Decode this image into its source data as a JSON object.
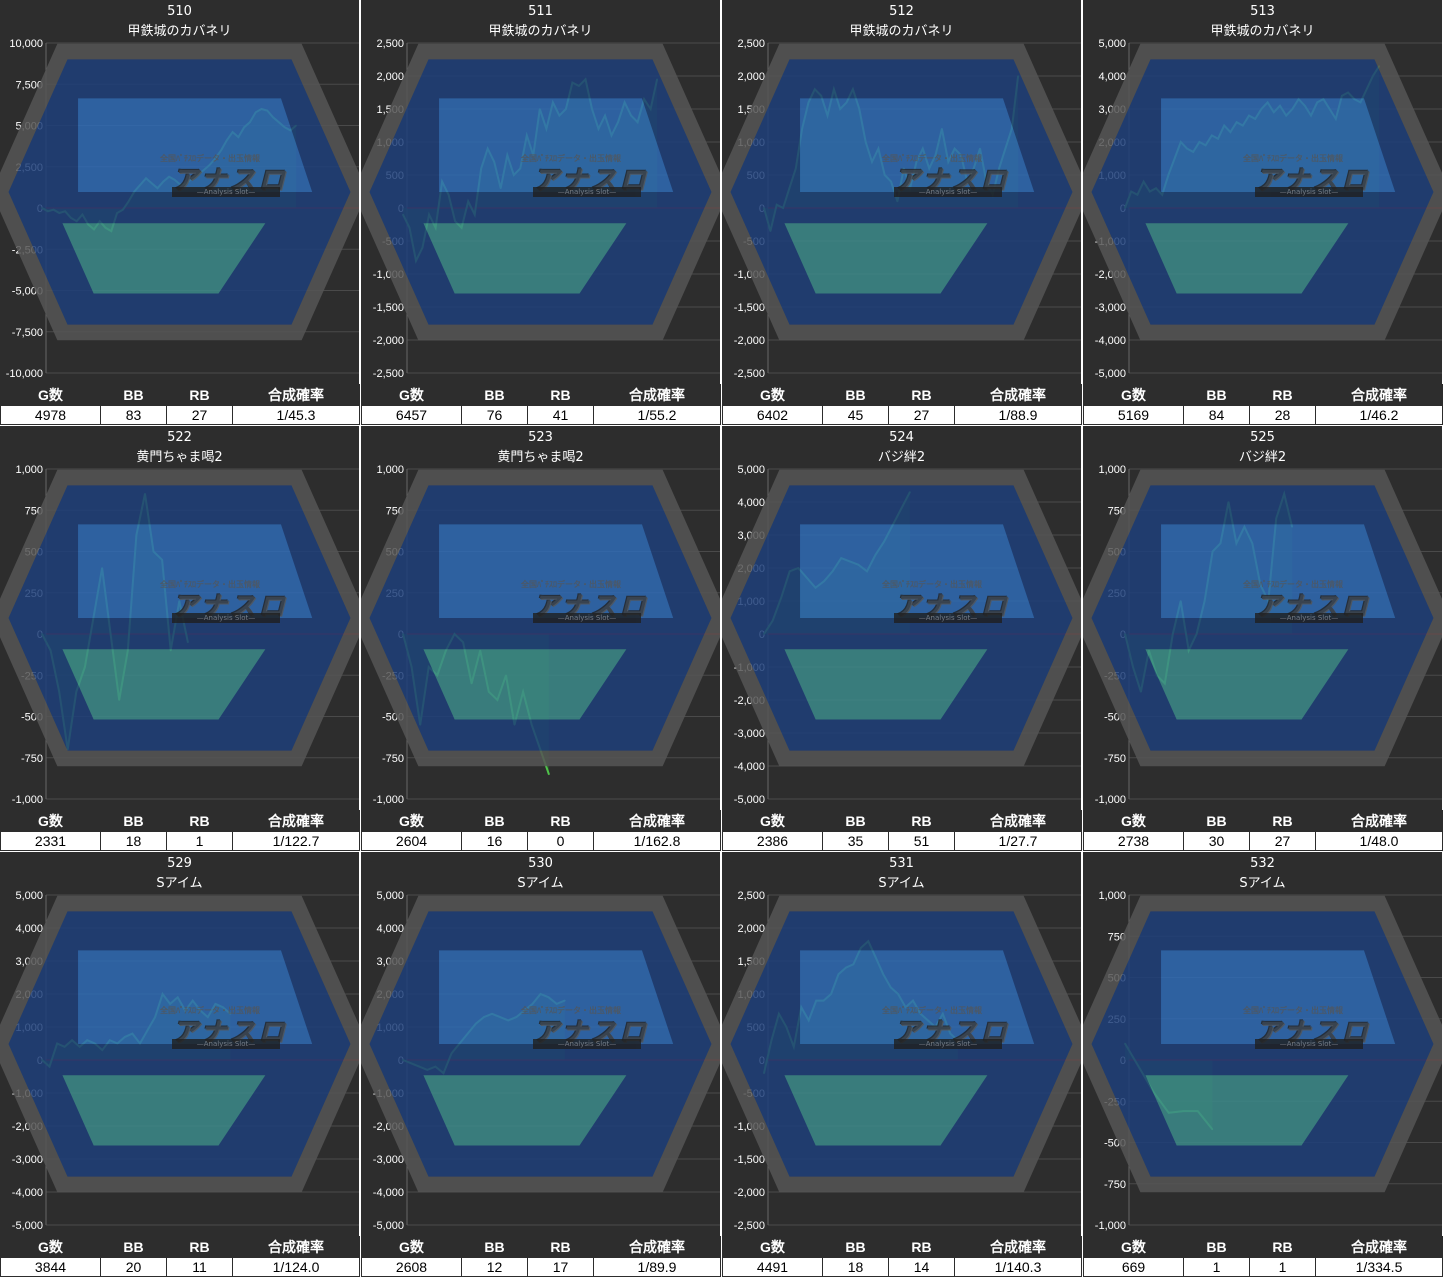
{
  "labels": {
    "games": "G数",
    "bb": "BB",
    "rb": "RB",
    "rate": "合成確率"
  },
  "watermark": {
    "top": "全国ﾊﾟﾁｽﾛデータ・出玉情報",
    "main": "アナスロ",
    "sub": "—Analysis Slot—"
  },
  "colors": {
    "background": "#2d2d2d",
    "line": "#4fc44a",
    "fill": "#2a6a2a",
    "zero_line": "#cc0000",
    "grid": "#4a4a4a",
    "text": "#ffffff"
  },
  "chart_data": [
    {
      "type": "area",
      "machine_no": "510",
      "machine_name": "甲鉄城のカバネリ",
      "ylim": [
        -10000,
        10000
      ],
      "yticks": [
        "10,000",
        "7,500",
        "5,000",
        "2,500",
        "0",
        "-2,500",
        "-5,000",
        "-7,500",
        "-10,000"
      ],
      "values": [
        0,
        -200,
        -100,
        -300,
        -200,
        -600,
        -800,
        -400,
        -1000,
        -1300,
        -800,
        -1200,
        -1400,
        -300,
        -100,
        400,
        1000,
        1400,
        1800,
        1500,
        1200,
        1600,
        1900,
        1700,
        1400,
        1500,
        1800,
        2000,
        2300,
        2600,
        3000,
        3500,
        4100,
        4600,
        4300,
        4900,
        5200,
        5800,
        6000,
        5900,
        5500,
        5200,
        4900,
        4700,
        5000
      ],
      "stats": {
        "games": "4978",
        "bb": "83",
        "rb": "27",
        "rate": "1/45.3"
      }
    },
    {
      "type": "area",
      "machine_no": "511",
      "machine_name": "甲鉄城のカバネリ",
      "ylim": [
        -2500,
        2500
      ],
      "yticks": [
        "2,500",
        "2,000",
        "1,500",
        "1,000",
        "500",
        "0",
        "-500",
        "-1,000",
        "-1,500",
        "-2,000",
        "-2,500"
      ],
      "values": [
        -100,
        -300,
        -800,
        -600,
        -100,
        -300,
        400,
        200,
        -200,
        -300,
        100,
        -100,
        600,
        900,
        700,
        300,
        800,
        500,
        600,
        1100,
        800,
        1500,
        1200,
        1600,
        1400,
        1500,
        1900,
        1850,
        1950,
        1500,
        1200,
        1400,
        1100,
        1300,
        1600,
        1400,
        1300,
        1650,
        1500,
        1950
      ],
      "stats": {
        "games": "6457",
        "bb": "76",
        "rb": "41",
        "rate": "1/55.2"
      }
    },
    {
      "type": "area",
      "machine_no": "512",
      "machine_name": "甲鉄城のカバネリ",
      "ylim": [
        -2500,
        2500
      ],
      "yticks": [
        "2,500",
        "2,000",
        "1,500",
        "1,000",
        "500",
        "0",
        "-500",
        "-1,000",
        "-1,500",
        "-2,000",
        "-2,500"
      ],
      "values": [
        0,
        -350,
        50,
        0,
        300,
        600,
        1200,
        1600,
        1800,
        1700,
        1400,
        1800,
        1500,
        1600,
        1800,
        1500,
        1000,
        700,
        900,
        500,
        400,
        100,
        600,
        300,
        700,
        900,
        600,
        800,
        1200,
        700,
        900,
        800,
        400,
        600,
        900,
        400,
        200,
        600,
        900,
        1200,
        2000
      ],
      "stats": {
        "games": "6402",
        "bb": "45",
        "rb": "27",
        "rate": "1/88.9"
      }
    },
    {
      "type": "area",
      "machine_no": "513",
      "machine_name": "甲鉄城のカバネリ",
      "ylim": [
        -5000,
        5000
      ],
      "yticks": [
        "5,000",
        "4,000",
        "3,000",
        "2,000",
        "1,000",
        "0",
        "-1,000",
        "-2,000",
        "-3,000",
        "-4,000",
        "-5,000"
      ],
      "values": [
        0,
        500,
        400,
        800,
        500,
        600,
        400,
        1000,
        1500,
        2000,
        1800,
        1700,
        2000,
        1900,
        2200,
        2100,
        2500,
        2300,
        2600,
        2500,
        2800,
        2700,
        3000,
        3200,
        2900,
        3100,
        2800,
        3000,
        3300,
        3100,
        2800,
        3200,
        3300,
        3000,
        2700,
        3400,
        3500,
        3300,
        3200,
        3600,
        4000,
        4300
      ],
      "stats": {
        "games": "5169",
        "bb": "84",
        "rb": "28",
        "rate": "1/46.2"
      }
    },
    {
      "type": "area",
      "machine_no": "522",
      "machine_name": "黄門ちゃま喝2",
      "ylim": [
        -1000,
        1000
      ],
      "yticks": [
        "1,000",
        "750",
        "500",
        "250",
        "0",
        "-250",
        "-500",
        "-750",
        "-1,000"
      ],
      "values": [
        0,
        -100,
        -350,
        -700,
        -350,
        -200,
        100,
        400,
        0,
        -400,
        -100,
        600,
        850,
        500,
        450,
        -100,
        200,
        -50
      ],
      "stats": {
        "games": "2331",
        "bb": "18",
        "rb": "1",
        "rate": "1/122.7"
      }
    },
    {
      "type": "area",
      "machine_no": "523",
      "machine_name": "黄門ちゃま喝2",
      "ylim": [
        -1000,
        1000
      ],
      "yticks": [
        "1,000",
        "750",
        "500",
        "250",
        "0",
        "-250",
        "-500",
        "-750",
        "-1,000"
      ],
      "values": [
        0,
        -200,
        -550,
        -200,
        -250,
        -100,
        0,
        -50,
        -300,
        -100,
        -350,
        -400,
        -250,
        -550,
        -350,
        -550,
        -700,
        -850
      ],
      "stats": {
        "games": "2604",
        "bb": "16",
        "rb": "0",
        "rate": "1/162.8"
      }
    },
    {
      "type": "area",
      "machine_no": "524",
      "machine_name": "バジ絆2",
      "ylim": [
        -5000,
        5000
      ],
      "yticks": [
        "5,000",
        "4,000",
        "3,000",
        "2,000",
        "1,000",
        "0",
        "-1,000",
        "-2,000",
        "-3,000",
        "-4,000",
        "-5,000"
      ],
      "values": [
        0,
        400,
        1100,
        1900,
        2000,
        1700,
        1400,
        1600,
        1900,
        2300,
        2200,
        2100,
        1900,
        2400,
        2800,
        3300,
        3800,
        4300
      ],
      "stats": {
        "games": "2386",
        "bb": "35",
        "rb": "51",
        "rate": "1/27.7"
      }
    },
    {
      "type": "area",
      "machine_no": "525",
      "machine_name": "バジ絆2",
      "ylim": [
        -1000,
        1000
      ],
      "yticks": [
        "1,000",
        "750",
        "500",
        "250",
        "0",
        "-250",
        "-500",
        "-750",
        "-1,000"
      ],
      "values": [
        0,
        -200,
        -350,
        -100,
        -250,
        -300,
        0,
        200,
        -100,
        0,
        200,
        500,
        550,
        800,
        550,
        650,
        550,
        300,
        200,
        700,
        850,
        650
      ],
      "stats": {
        "games": "2738",
        "bb": "30",
        "rb": "27",
        "rate": "1/48.0"
      }
    },
    {
      "type": "area",
      "machine_no": "529",
      "machine_name": "Sアイム",
      "ylim": [
        -5000,
        5000
      ],
      "yticks": [
        "5,000",
        "4,000",
        "3,000",
        "2,000",
        "1,000",
        "0",
        "-1,000",
        "-2,000",
        "-3,000",
        "-4,000",
        "-5,000"
      ],
      "values": [
        0,
        -200,
        500,
        400,
        600,
        400,
        600,
        500,
        300,
        600,
        500,
        700,
        800,
        500,
        900,
        1300,
        2000,
        1700,
        1900,
        1500,
        1800,
        1500,
        1300,
        1700,
        1600,
        1400
      ],
      "stats": {
        "games": "3844",
        "bb": "20",
        "rb": "11",
        "rate": "1/124.0"
      }
    },
    {
      "type": "area",
      "machine_no": "530",
      "machine_name": "Sアイム",
      "ylim": [
        -5000,
        5000
      ],
      "yticks": [
        "5,000",
        "4,000",
        "3,000",
        "2,000",
        "1,000",
        "0",
        "-1,000",
        "-2,000",
        "-3,000",
        "-4,000",
        "-5,000"
      ],
      "values": [
        0,
        -100,
        -200,
        -300,
        -200,
        -400,
        200,
        500,
        800,
        1100,
        1300,
        1400,
        1300,
        1200,
        1300,
        1500,
        1700,
        2000,
        1900,
        1700,
        1800
      ],
      "stats": {
        "games": "2608",
        "bb": "12",
        "rb": "17",
        "rate": "1/89.9"
      }
    },
    {
      "type": "area",
      "machine_no": "531",
      "machine_name": "Sアイム",
      "ylim": [
        -2500,
        2500
      ],
      "yticks": [
        "2,500",
        "2,000",
        "1,500",
        "1,000",
        "500",
        "0",
        "-500",
        "-1,000",
        "-1,500",
        "-2,000",
        "-2,500"
      ],
      "values": [
        -200,
        300,
        700,
        500,
        200,
        800,
        600,
        900,
        900,
        1000,
        1300,
        1400,
        1450,
        1700,
        1800,
        1550,
        1300,
        1100,
        1000,
        800,
        900,
        700,
        600,
        500,
        700,
        400,
        300
      ],
      "stats": {
        "games": "4491",
        "bb": "18",
        "rb": "14",
        "rate": "1/140.3"
      }
    },
    {
      "type": "area",
      "machine_no": "532",
      "machine_name": "Sアイム",
      "ylim": [
        -1000,
        1000
      ],
      "yticks": [
        "1,000",
        "750",
        "500",
        "250",
        "0",
        "-250",
        "-500",
        "-750",
        "-1,000"
      ],
      "values": [
        100,
        -50,
        -200,
        -320,
        -310,
        -310,
        -420
      ],
      "stats": {
        "games": "669",
        "bb": "1",
        "rb": "1",
        "rate": "1/334.5"
      }
    }
  ]
}
